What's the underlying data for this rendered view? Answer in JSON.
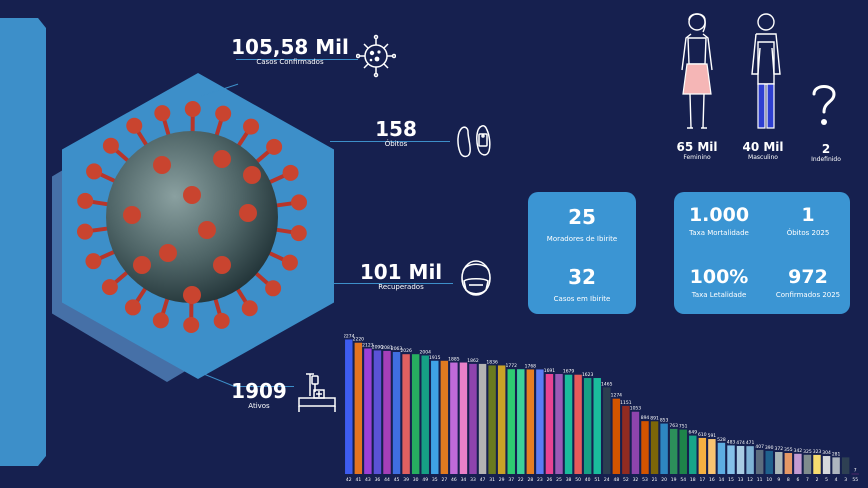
{
  "kpis": {
    "confirmed": {
      "value": "105,58 Mil",
      "label": "Casos Confirmados"
    },
    "deaths": {
      "value": "158",
      "label": "Óbitos"
    },
    "recovered": {
      "value": "101 Mil",
      "label": "Recuperados"
    },
    "active": {
      "value": "1909",
      "label": "Ativos"
    }
  },
  "gender": {
    "female": {
      "value": "65 Mil",
      "label": "Feminino"
    },
    "male": {
      "value": "40 Mil",
      "label": "Masculino"
    },
    "undefined": {
      "value": "2",
      "label": "Indefinido"
    }
  },
  "card_left": {
    "residents": {
      "value": "25",
      "label": "Moradores de Ibirite"
    },
    "cases": {
      "value": "32",
      "label": "Casos em Ibirite"
    }
  },
  "card_right": {
    "mortality": {
      "value": "1.000",
      "label": "Taxa Mortalidade"
    },
    "deaths_2025": {
      "value": "1",
      "label": "Óbitos 2025"
    },
    "lethality": {
      "value": "100%",
      "label": "Taxa Letalidade"
    },
    "confirmed_2025": {
      "value": "972",
      "label": "Confirmados 2025"
    }
  },
  "colors": {
    "background": "#16204f",
    "panel": "#3b95d3",
    "hexagon": "#3d8fc9"
  },
  "chart_data": {
    "type": "bar",
    "categories": [
      "42",
      "41",
      "43",
      "36",
      "44",
      "45",
      "39",
      "30",
      "49",
      "35",
      "27",
      "46",
      "34",
      "33",
      "47",
      "31",
      "29",
      "37",
      "22",
      "28",
      "23",
      "26",
      "25",
      "38",
      "50",
      "40",
      "51",
      "24",
      "48",
      "52",
      "32",
      "53",
      "21",
      "20",
      "19",
      "54",
      "18",
      "17",
      "16",
      "14",
      "15",
      "13",
      "12",
      "11",
      "10",
      "9",
      "8",
      "6",
      "7",
      "2",
      "5",
      "4",
      "3",
      "55"
    ],
    "values": [
      2274,
      2220,
      2123,
      2090,
      2081,
      2063,
      2026,
      2026,
      2004,
      1915,
      1915,
      1885,
      1885,
      1862,
      1862,
      1836,
      1836,
      1772,
      1772,
      1768,
      1768,
      1691,
      1691,
      1679,
      1679,
      1623,
      1623,
      1465,
      1274,
      1151,
      1053,
      894,
      891,
      853,
      763,
      751,
      649,
      610,
      591,
      528,
      483,
      474,
      471,
      407,
      390,
      372,
      355,
      342,
      325,
      323,
      304,
      281,
      281,
      7
    ],
    "labels": [
      "2274",
      "2220",
      "2123",
      "2090",
      "2081",
      "2063",
      "2026",
      "",
      "2004",
      "1915",
      "",
      "1885",
      "",
      "1862",
      "",
      "1836",
      "",
      "1772",
      "",
      "1768",
      "",
      "1691",
      "",
      "1679",
      "",
      "1623",
      "",
      "1465",
      "1274",
      "1151",
      "1053",
      "894",
      "891",
      "853",
      "763",
      "751",
      "649",
      "610",
      "591",
      "528",
      "483",
      "474",
      "471",
      "407",
      "390",
      "372",
      "355",
      "342",
      "325",
      "323",
      "304",
      "281",
      "",
      "7"
    ],
    "colors": [
      "#3d5cf0",
      "#e4741f",
      "#9b3fd6",
      "#5a52d6",
      "#a63fb8",
      "#3f6fe0",
      "#e06060",
      "#27ae60",
      "#16a085",
      "#3fa2e6",
      "#e07a20",
      "#c06ad8",
      "#e880c8",
      "#8e44ad",
      "#b3b3b3",
      "#6a7a1f",
      "#c9a227",
      "#2ecc71",
      "#3cd09a",
      "#e67e22",
      "#5b7cf5",
      "#e84393",
      "#9b59b6",
      "#1abc9c",
      "#e75a5a",
      "#16a085",
      "#1abc9c",
      "#2c3e50",
      "#d35400",
      "#922b21",
      "#8e44ad",
      "#d35400",
      "#7d6608",
      "#2e86c1",
      "#2c8f5a",
      "#1e8449",
      "#17a589",
      "#f5b041",
      "#f8c471",
      "#5dade2",
      "#85c1e9",
      "#a9cce3",
      "#7fb3d5",
      "#5d6d7e",
      "#1f618d",
      "#aab7b8",
      "#e59866",
      "#c39bd3",
      "#7f8c8d",
      "#f7dc6f",
      "#d5d8dc",
      "#aeb6bf",
      "#2e4053",
      "#5b2c6f"
    ]
  }
}
